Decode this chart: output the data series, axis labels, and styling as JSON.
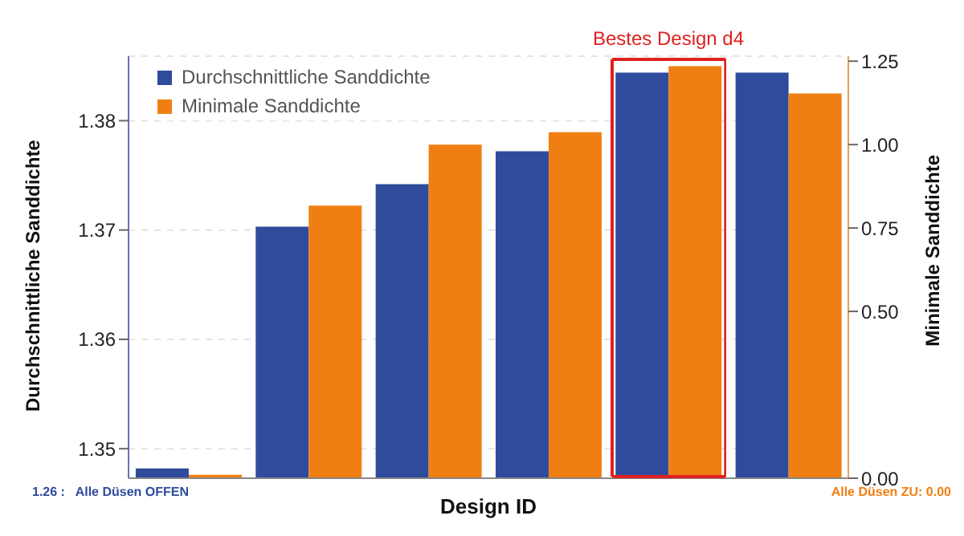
{
  "chart_data": {
    "type": "bar",
    "xlabel": "Design ID",
    "ylabel": "Durchschnittliche Sanddichte",
    "y2label": "Minimale Sanddichte",
    "categories": [
      null,
      null,
      null,
      null,
      null,
      null
    ],
    "series": [
      {
        "name": "Durchschnittliche Sanddichte",
        "color": "#2f4b9c",
        "values": [
          1.3482,
          1.3703,
          1.3742,
          1.3772,
          1.3844,
          1.3844
        ]
      },
      {
        "name": "Minimale Sanddichte",
        "color": "#f07f13",
        "axis": "y2",
        "values": [
          0.01,
          0.817,
          1.0,
          1.037,
          1.235,
          1.153
        ]
      }
    ],
    "ylim": [
      1.3473,
      1.3859
    ],
    "yticks": [
      1.35,
      1.36,
      1.37,
      1.38
    ],
    "y2lim": [
      0,
      1.265
    ],
    "y2ticks": [
      {
        "value": 0,
        "label": "0.00"
      },
      {
        "value": 0.5,
        "label": "0.50"
      },
      {
        "value": 0.75,
        "label": "0.75"
      },
      {
        "value": 1,
        "label": "1.00"
      },
      {
        "value": 1.25,
        "label": "1.25"
      }
    ],
    "annotations": [
      "Bestes Design d4",
      "1.26 :   Alle Düsen OFFEN",
      "Alle Düsen ZU: 0.00"
    ],
    "grid": "y",
    "legend": "top left"
  }
}
